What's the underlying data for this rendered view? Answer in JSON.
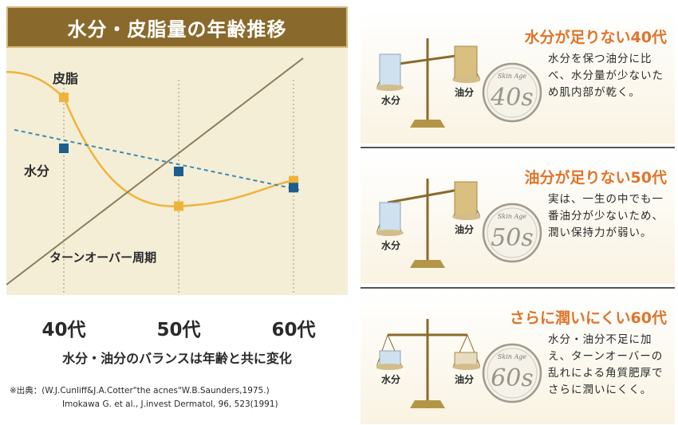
{
  "left_panel": {
    "title": "水分・皮脂量の年齢推移",
    "labels": {
      "sebum": "皮脂",
      "water": "水分",
      "turnover": "ターンオーバー周期"
    },
    "balance_note": "水分・油分のバランスは年齢と共に変化",
    "source_line1": "※出典：(W.J.Cunliff&J.A.Cotter\"the acnes\"W.B.Saunders,1975.)",
    "source_line2": "Imokawa G. et al., J.invest Dermatol, 96, 523(1991)"
  },
  "chart_data": {
    "type": "line",
    "categories": [
      "40代",
      "50代",
      "60代"
    ],
    "series": [
      {
        "name": "皮脂",
        "values": [
          8.2,
          3.5,
          4.6
        ],
        "color": "#f0b33a"
      },
      {
        "name": "水分",
        "values": [
          6.0,
          5.0,
          4.3
        ],
        "color": "#1d5e8c"
      },
      {
        "name": "ターンオーバー周期",
        "values": [
          0.6,
          4.5,
          8.5
        ],
        "color": "#8c7d5c"
      }
    ],
    "ylim": [
      0,
      10
    ],
    "grid": false,
    "legend": "inline-labels"
  },
  "right_panel": {
    "cards": [
      {
        "title": "水分が足りない40代",
        "text": "水分を保つ油分に比べ、水分量が少ないため肌内部が乾く。",
        "badge_small": "Skin Age",
        "badge_big": "40s",
        "left_pan": "水分",
        "right_pan": "油分"
      },
      {
        "title": "油分が足りない50代",
        "text": "実は、一生の中でも一番油分が少ないため、潤い保持力が弱い。",
        "badge_small": "Skin Age",
        "badge_big": "50s",
        "left_pan": "水分",
        "right_pan": "油分"
      },
      {
        "title": "さらに潤いにくい60代",
        "text": "水分・油分不足に加え、ターンオーバーの乱れによる角質肥厚でさらに潤いにくく。",
        "badge_small": "Skin Age",
        "badge_big": "60s",
        "left_pan": "水分",
        "right_pan": "油分"
      }
    ]
  }
}
